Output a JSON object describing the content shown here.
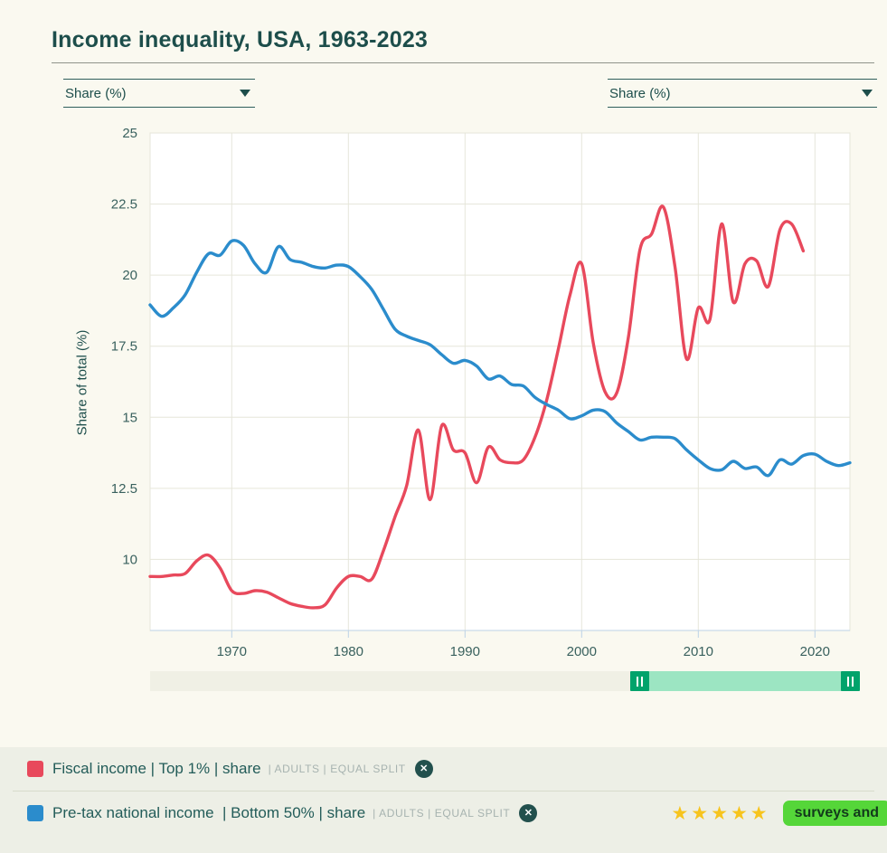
{
  "title": "Income inequality, USA, 1963-2023",
  "controls": {
    "left_select": "Share (%)",
    "right_select": "Share (%)"
  },
  "chart_data": {
    "type": "line",
    "title": "Income inequality, USA, 1963-2023",
    "xlabel": "",
    "ylabel": "Share of total (%)",
    "xlim": [
      1963,
      2023
    ],
    "ylim": [
      7.5,
      25
    ],
    "x_ticks": [
      1970,
      1980,
      1990,
      2000,
      2010,
      2020
    ],
    "y_ticks": [
      10,
      12.5,
      15,
      17.5,
      20,
      22.5,
      25
    ],
    "grid": true,
    "legend_position": "bottom",
    "series": [
      {
        "name": "Fiscal income | Top 1% | share | Adults | Equal split",
        "color": "#e8495c",
        "x": [
          1963,
          1964,
          1965,
          1966,
          1967,
          1968,
          1969,
          1970,
          1971,
          1972,
          1973,
          1974,
          1975,
          1976,
          1977,
          1978,
          1979,
          1980,
          1981,
          1982,
          1983,
          1984,
          1985,
          1986,
          1987,
          1988,
          1989,
          1990,
          1991,
          1992,
          1993,
          1994,
          1995,
          1996,
          1997,
          1998,
          1999,
          2000,
          2001,
          2002,
          2003,
          2004,
          2005,
          2006,
          2007,
          2008,
          2009,
          2010,
          2011,
          2012,
          2013,
          2014,
          2015,
          2016,
          2017,
          2018,
          2019
        ],
        "values": [
          9.4,
          9.4,
          9.45,
          9.5,
          9.95,
          10.15,
          9.7,
          8.9,
          8.8,
          8.9,
          8.85,
          8.65,
          8.45,
          8.35,
          8.3,
          8.4,
          9.0,
          9.4,
          9.4,
          9.3,
          10.3,
          11.5,
          12.6,
          14.55,
          12.1,
          14.7,
          13.85,
          13.75,
          12.7,
          13.95,
          13.5,
          13.4,
          13.5,
          14.3,
          15.6,
          17.4,
          19.3,
          20.4,
          17.6,
          15.9,
          15.85,
          17.8,
          20.9,
          21.45,
          22.4,
          20.3,
          17.05,
          18.85,
          18.45,
          21.8,
          19.05,
          20.4,
          20.5,
          19.6,
          21.6,
          21.8,
          20.85
        ]
      },
      {
        "name": "Pre-tax national income | Bottom 50% | share | Adults | Equal split",
        "color": "#2b8ccc",
        "x": [
          1963,
          1964,
          1965,
          1966,
          1967,
          1968,
          1969,
          1970,
          1971,
          1972,
          1973,
          1974,
          1975,
          1976,
          1977,
          1978,
          1979,
          1980,
          1981,
          1982,
          1983,
          1984,
          1985,
          1986,
          1987,
          1988,
          1989,
          1990,
          1991,
          1992,
          1993,
          1994,
          1995,
          1996,
          1997,
          1998,
          1999,
          2000,
          2001,
          2002,
          2003,
          2004,
          2005,
          2006,
          2007,
          2008,
          2009,
          2010,
          2011,
          2012,
          2013,
          2014,
          2015,
          2016,
          2017,
          2018,
          2019,
          2020,
          2021,
          2022,
          2023
        ],
        "values": [
          18.95,
          18.55,
          18.85,
          19.3,
          20.1,
          20.75,
          20.7,
          21.2,
          21.05,
          20.4,
          20.1,
          21.0,
          20.55,
          20.45,
          20.3,
          20.25,
          20.35,
          20.3,
          19.95,
          19.5,
          18.8,
          18.1,
          17.85,
          17.7,
          17.55,
          17.2,
          16.9,
          17.0,
          16.8,
          16.35,
          16.45,
          16.15,
          16.1,
          15.7,
          15.45,
          15.25,
          14.95,
          15.05,
          15.25,
          15.2,
          14.8,
          14.5,
          14.2,
          14.3,
          14.3,
          14.25,
          13.85,
          13.5,
          13.2,
          13.15,
          13.45,
          13.2,
          13.25,
          12.95,
          13.5,
          13.35,
          13.65,
          13.7,
          13.45,
          13.3,
          13.4
        ]
      }
    ],
    "axis_colors": {
      "grid": "#e6e6da",
      "x_axis_line": "#bcd2e6",
      "tick_text": "#39615e"
    }
  },
  "slider": {
    "start_year": 2005,
    "end_year": 2023
  },
  "legend": [
    {
      "label": "Fiscal income | Top 1% | share",
      "meta": "| ADULTS | EQUAL SPLIT",
      "color": "#e8495c"
    },
    {
      "label": "Pre-tax national income  | Bottom 50% | share",
      "meta": "| ADULTS | EQUAL SPLIT",
      "color": "#2b8ccc"
    }
  ],
  "rating": {
    "stars": "★★★★★",
    "color": "#f7c41d"
  },
  "badge": {
    "label": "surveys and",
    "color": "#55d639"
  },
  "icons": {
    "close_glyph": "✕"
  }
}
